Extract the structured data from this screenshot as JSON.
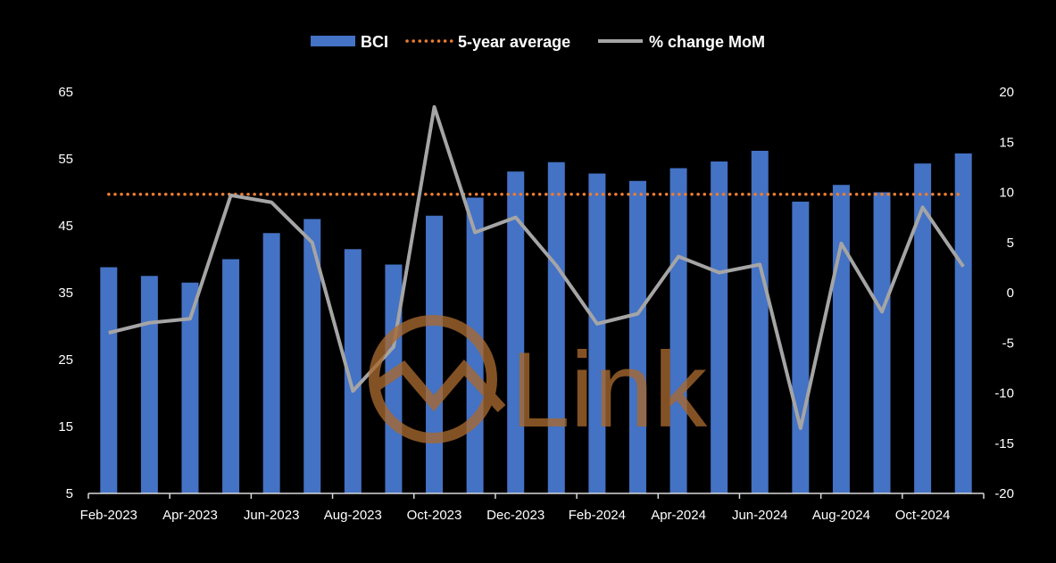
{
  "chart_data": {
    "type": "bar",
    "categories": [
      "Feb-2023",
      "Mar-2023",
      "Apr-2023",
      "May-2023",
      "Jun-2023",
      "Jul-2023",
      "Aug-2023",
      "Sep-2023",
      "Oct-2023",
      "Nov-2023",
      "Dec-2023",
      "Jan-2024",
      "Feb-2024",
      "Mar-2024",
      "Apr-2024",
      "May-2024",
      "Jun-2024",
      "Jul-2024",
      "Aug-2024",
      "Sep-2024",
      "Oct-2024",
      "Nov-2024"
    ],
    "x_tick_labels": [
      "Feb-2023",
      "Apr-2023",
      "Jun-2023",
      "Aug-2023",
      "Oct-2023",
      "Dec-2023",
      "Feb-2024",
      "Apr-2024",
      "Jun-2024",
      "Aug-2024",
      "Oct-2024"
    ],
    "series": [
      {
        "name": "BCI",
        "type": "bar",
        "axis": "left",
        "color": "#4472c4",
        "values": [
          38.8,
          37.5,
          36.5,
          40.0,
          43.9,
          46.0,
          41.5,
          39.2,
          46.5,
          49.2,
          53.1,
          54.5,
          52.8,
          51.7,
          53.6,
          54.6,
          56.2,
          48.6,
          51.1,
          50.0,
          54.3,
          55.8
        ]
      },
      {
        "name": "5-year average",
        "type": "dotted-line",
        "axis": "left",
        "color": "#ed7d31",
        "values": [
          49.7,
          49.7,
          49.7,
          49.7,
          49.7,
          49.7,
          49.7,
          49.7,
          49.7,
          49.7,
          49.7,
          49.7,
          49.7,
          49.7,
          49.7,
          49.7,
          49.7,
          49.7,
          49.7,
          49.7,
          49.7,
          49.7
        ]
      },
      {
        "name": "% change MoM",
        "type": "line",
        "axis": "right",
        "color": "#a5a5a5",
        "values": [
          -4.0,
          -3.0,
          -2.6,
          9.7,
          9.0,
          5.0,
          -9.8,
          -5.4,
          18.5,
          6.0,
          7.5,
          2.7,
          -3.1,
          -2.1,
          3.6,
          2.0,
          2.8,
          -13.5,
          4.9,
          -1.9,
          8.5,
          2.6
        ]
      }
    ],
    "y_left": {
      "min": 5,
      "max": 65,
      "ticks": [
        5,
        15,
        25,
        35,
        45,
        55,
        65
      ]
    },
    "y_right": {
      "min": -20,
      "max": 20,
      "ticks": [
        -20,
        -15,
        -10,
        -5,
        0,
        5,
        10,
        15,
        20
      ]
    },
    "legend_position": "top-center",
    "grid": false,
    "title": "",
    "xlabel": "",
    "ylabel": ""
  },
  "watermark": {
    "text": "Link",
    "color": "#a8692f"
  }
}
